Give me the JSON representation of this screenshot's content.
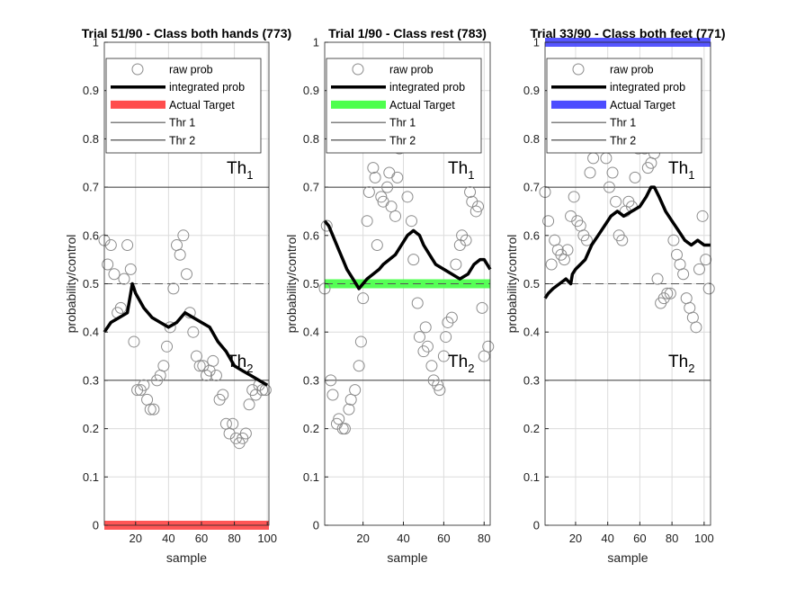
{
  "chart_data": [
    {
      "type": "line",
      "title": "Trial 51/90 - Class both hands (773)",
      "xlabel": "sample",
      "ylabel": "probability/control",
      "xlim": [
        1,
        101
      ],
      "ylim": [
        0,
        1
      ],
      "xticks": [
        20,
        40,
        60,
        80,
        100
      ],
      "yticks": [
        0,
        0.1,
        0.2,
        0.3,
        0.4,
        0.5,
        0.6,
        0.7,
        0.8,
        0.9,
        1
      ],
      "ytick_labels": [
        "0",
        "0.1",
        "0.2",
        "0.3",
        "0.4",
        "0.5",
        "0.6",
        "0.7",
        "0.8",
        "0.9",
        "1"
      ],
      "grid": true,
      "thr1": 0.7,
      "thr2": 0.3,
      "midline": 0.5,
      "target_level": 0,
      "target_color": "#ff4d4d",
      "th1_label": "Th",
      "th1_sub": "1",
      "th2_label": "Th",
      "th2_sub": "2",
      "legend": {
        "placement": "top",
        "entries": [
          "raw prob",
          "integrated prob",
          "Actual Target",
          "Thr 1",
          "Thr 2"
        ]
      },
      "raw_prob": {
        "x": [
          1,
          3,
          5,
          7,
          9,
          11,
          13,
          15,
          17,
          19,
          21,
          23,
          25,
          27,
          29,
          31,
          33,
          35,
          37,
          39,
          41,
          43,
          45,
          47,
          49,
          51,
          53,
          55,
          57,
          59,
          61,
          63,
          65,
          67,
          69,
          71,
          73,
          75,
          77,
          79,
          81,
          83,
          85,
          87,
          89,
          91,
          93,
          95,
          97,
          99
        ],
        "y": [
          0.59,
          0.54,
          0.58,
          0.52,
          0.44,
          0.45,
          0.51,
          0.58,
          0.53,
          0.38,
          0.28,
          0.28,
          0.29,
          0.26,
          0.24,
          0.24,
          0.3,
          0.31,
          0.33,
          0.37,
          0.41,
          0.49,
          0.58,
          0.56,
          0.6,
          0.52,
          0.44,
          0.4,
          0.35,
          0.33,
          0.33,
          0.31,
          0.32,
          0.34,
          0.31,
          0.26,
          0.27,
          0.21,
          0.19,
          0.21,
          0.18,
          0.17,
          0.18,
          0.19,
          0.25,
          0.28,
          0.27,
          0.29,
          0.28,
          0.28
        ]
      },
      "integrated_prob": {
        "x": [
          1,
          5,
          10,
          15,
          17,
          18,
          20,
          25,
          30,
          35,
          40,
          45,
          50,
          55,
          60,
          65,
          70,
          75,
          80,
          85,
          90,
          95,
          100
        ],
        "y": [
          0.4,
          0.42,
          0.43,
          0.44,
          0.48,
          0.5,
          0.48,
          0.45,
          0.43,
          0.42,
          0.41,
          0.42,
          0.44,
          0.43,
          0.42,
          0.41,
          0.38,
          0.36,
          0.33,
          0.32,
          0.31,
          0.3,
          0.29
        ]
      }
    },
    {
      "type": "line",
      "title": "Trial 1/90 - Class rest (783)",
      "xlabel": "sample",
      "ylabel": "probability/control",
      "xlim": [
        1,
        83
      ],
      "ylim": [
        0,
        1
      ],
      "xticks": [
        20,
        40,
        60,
        80
      ],
      "yticks": [
        0,
        0.1,
        0.2,
        0.3,
        0.4,
        0.5,
        0.6,
        0.7,
        0.8,
        0.9,
        1
      ],
      "ytick_labels": [
        "0",
        "0.1",
        "0.2",
        "0.3",
        "0.4",
        "0.5",
        "0.6",
        "0.7",
        "0.8",
        "0.9",
        "1"
      ],
      "grid": true,
      "thr1": 0.7,
      "thr2": 0.3,
      "midline": 0.5,
      "target_level": 0.5,
      "target_color": "#4dff4d",
      "th1_label": "Th",
      "th1_sub": "1",
      "th2_label": "Th",
      "th2_sub": "2",
      "legend": {
        "placement": "top",
        "entries": [
          "raw prob",
          "integrated prob",
          "Actual Target",
          "Thr 1",
          "Thr 2"
        ]
      },
      "raw_prob": {
        "x": [
          1,
          2,
          4,
          5,
          7,
          8,
          10,
          11,
          13,
          14,
          16,
          18,
          19,
          20,
          22,
          23,
          25,
          26,
          27,
          29,
          30,
          32,
          33,
          34,
          36,
          37,
          38,
          40,
          42,
          44,
          45,
          47,
          48,
          50,
          51,
          52,
          54,
          55,
          57,
          58,
          60,
          61,
          62,
          64,
          66,
          68,
          69,
          71,
          73,
          74,
          76,
          77,
          79,
          80,
          82
        ],
        "y": [
          0.49,
          0.62,
          0.3,
          0.27,
          0.21,
          0.22,
          0.2,
          0.2,
          0.24,
          0.26,
          0.28,
          0.33,
          0.38,
          0.47,
          0.63,
          0.69,
          0.74,
          0.72,
          0.58,
          0.68,
          0.67,
          0.7,
          0.73,
          0.66,
          0.64,
          0.72,
          0.78,
          0.79,
          0.68,
          0.63,
          0.55,
          0.46,
          0.39,
          0.36,
          0.41,
          0.37,
          0.33,
          0.3,
          0.29,
          0.28,
          0.35,
          0.39,
          0.42,
          0.43,
          0.54,
          0.58,
          0.6,
          0.59,
          0.69,
          0.67,
          0.65,
          0.66,
          0.45,
          0.35,
          0.37
        ]
      },
      "integrated_prob": {
        "x": [
          1,
          3,
          5,
          8,
          10,
          12,
          15,
          18,
          20,
          22,
          25,
          28,
          30,
          33,
          36,
          39,
          42,
          45,
          48,
          50,
          53,
          56,
          60,
          64,
          68,
          72,
          75,
          78,
          80,
          83
        ],
        "y": [
          0.63,
          0.62,
          0.6,
          0.57,
          0.55,
          0.53,
          0.51,
          0.49,
          0.5,
          0.51,
          0.52,
          0.53,
          0.54,
          0.55,
          0.56,
          0.58,
          0.6,
          0.61,
          0.6,
          0.58,
          0.56,
          0.54,
          0.53,
          0.52,
          0.51,
          0.52,
          0.54,
          0.55,
          0.55,
          0.53
        ]
      }
    },
    {
      "type": "line",
      "title": "Trial 33/90 - Class both feet (771)",
      "xlabel": "sample",
      "ylabel": "probability/control",
      "xlim": [
        1,
        104
      ],
      "ylim": [
        0,
        1
      ],
      "xticks": [
        20,
        40,
        60,
        80,
        100
      ],
      "yticks": [
        0,
        0.1,
        0.2,
        0.3,
        0.4,
        0.5,
        0.6,
        0.7,
        0.8,
        0.9,
        1
      ],
      "ytick_labels": [
        "0",
        "0.1",
        "0.2",
        "0.3",
        "0.4",
        "0.5",
        "0.6",
        "0.7",
        "0.8",
        "0.9",
        "1"
      ],
      "grid": true,
      "thr1": 0.7,
      "thr2": 0.3,
      "midline": 0.5,
      "target_level": 1,
      "target_color": "#4d4dff",
      "th1_label": "Th",
      "th1_sub": "1",
      "th2_label": "Th",
      "th2_sub": "2",
      "legend": {
        "placement": "top",
        "entries": [
          "raw prob",
          "integrated prob",
          "Actual Target",
          "Thr 1",
          "Thr 2"
        ]
      },
      "raw_prob": {
        "x": [
          1,
          3,
          5,
          7,
          9,
          11,
          13,
          15,
          17,
          19,
          21,
          23,
          25,
          27,
          29,
          31,
          33,
          35,
          37,
          39,
          41,
          43,
          45,
          47,
          49,
          51,
          53,
          55,
          57,
          59,
          61,
          63,
          65,
          67,
          69,
          71,
          73,
          75,
          77,
          79,
          81,
          83,
          85,
          87,
          89,
          91,
          93,
          95,
          97,
          99,
          101,
          103
        ],
        "y": [
          0.69,
          0.63,
          0.54,
          0.59,
          0.57,
          0.56,
          0.55,
          0.57,
          0.64,
          0.68,
          0.63,
          0.62,
          0.6,
          0.59,
          0.73,
          0.76,
          0.8,
          0.79,
          0.82,
          0.76,
          0.7,
          0.73,
          0.67,
          0.6,
          0.59,
          0.65,
          0.67,
          0.66,
          0.72,
          0.78,
          0.8,
          0.78,
          0.74,
          0.75,
          0.77,
          0.51,
          0.46,
          0.47,
          0.48,
          0.48,
          0.59,
          0.56,
          0.54,
          0.52,
          0.47,
          0.45,
          0.43,
          0.41,
          0.53,
          0.64,
          0.55,
          0.49
        ]
      },
      "integrated_prob": {
        "x": [
          1,
          3,
          6,
          10,
          14,
          17,
          18,
          20,
          23,
          26,
          30,
          34,
          38,
          42,
          46,
          50,
          55,
          60,
          64,
          67,
          69,
          72,
          76,
          80,
          84,
          88,
          92,
          96,
          100,
          104
        ],
        "y": [
          0.47,
          0.48,
          0.49,
          0.5,
          0.51,
          0.5,
          0.52,
          0.53,
          0.54,
          0.55,
          0.58,
          0.6,
          0.62,
          0.64,
          0.65,
          0.64,
          0.65,
          0.66,
          0.68,
          0.7,
          0.7,
          0.68,
          0.65,
          0.63,
          0.61,
          0.59,
          0.58,
          0.59,
          0.58,
          0.58
        ]
      }
    }
  ]
}
